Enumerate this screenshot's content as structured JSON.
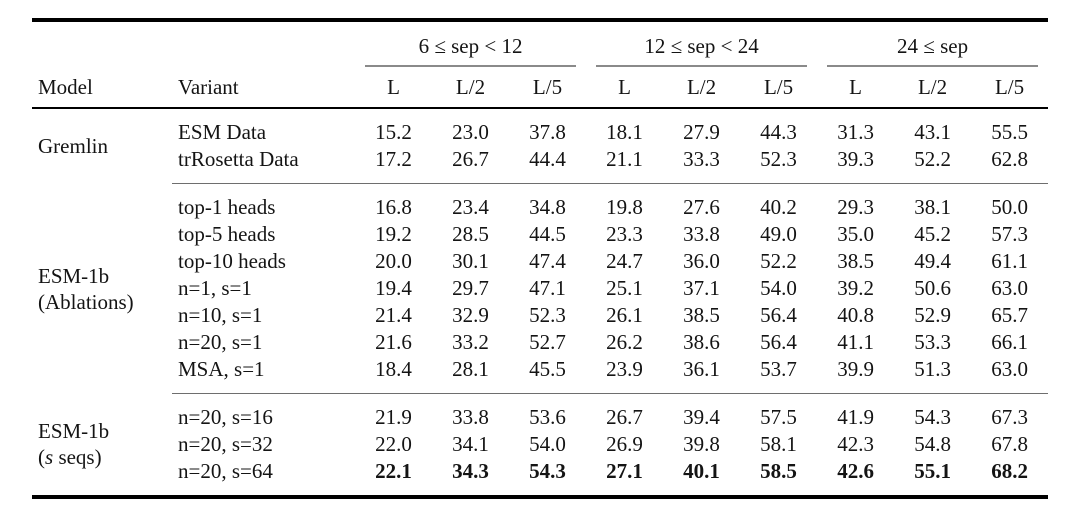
{
  "colors": {
    "heavy_rule": "#000000",
    "group_rule": "#8a8a8a",
    "section_rule": "#6e6e6e",
    "text": "#141414",
    "background": "#ffffff"
  },
  "table": {
    "col_groups": [
      {
        "label": "6 ≤ sep < 12"
      },
      {
        "label": "12 ≤ sep < 24"
      },
      {
        "label": "24 ≤ sep"
      }
    ],
    "header": {
      "model": "Model",
      "variant": "Variant",
      "subcols": [
        "L",
        "L/2",
        "L/5",
        "L",
        "L/2",
        "L/5",
        "L",
        "L/2",
        "L/5"
      ]
    },
    "sections": [
      {
        "model": "Gremlin",
        "rows": [
          {
            "variant": "ESM Data",
            "values": [
              "15.2",
              "23.0",
              "37.8",
              "18.1",
              "27.9",
              "44.3",
              "31.3",
              "43.1",
              "55.5"
            ]
          },
          {
            "variant": "trRosetta Data",
            "values": [
              "17.2",
              "26.7",
              "44.4",
              "21.1",
              "33.3",
              "52.3",
              "39.3",
              "52.2",
              "62.8"
            ]
          }
        ]
      },
      {
        "model": "ESM-1b",
        "model_line2": "(Ablations)",
        "rows": [
          {
            "variant": "top-1 heads",
            "values": [
              "16.8",
              "23.4",
              "34.8",
              "19.8",
              "27.6",
              "40.2",
              "29.3",
              "38.1",
              "50.0"
            ]
          },
          {
            "variant": "top-5 heads",
            "values": [
              "19.2",
              "28.5",
              "44.5",
              "23.3",
              "33.8",
              "49.0",
              "35.0",
              "45.2",
              "57.3"
            ]
          },
          {
            "variant": "top-10 heads",
            "values": [
              "20.0",
              "30.1",
              "47.4",
              "24.7",
              "36.0",
              "52.2",
              "38.5",
              "49.4",
              "61.1"
            ]
          },
          {
            "variant": "n=1, s=1",
            "values": [
              "19.4",
              "29.7",
              "47.1",
              "25.1",
              "37.1",
              "54.0",
              "39.2",
              "50.6",
              "63.0"
            ]
          },
          {
            "variant": "n=10, s=1",
            "values": [
              "21.4",
              "32.9",
              "52.3",
              "26.1",
              "38.5",
              "56.4",
              "40.8",
              "52.9",
              "65.7"
            ]
          },
          {
            "variant": "n=20, s=1",
            "values": [
              "21.6",
              "33.2",
              "52.7",
              "26.2",
              "38.6",
              "56.4",
              "41.1",
              "53.3",
              "66.1"
            ]
          },
          {
            "variant": "MSA, s=1",
            "values": [
              "18.4",
              "28.1",
              "45.5",
              "23.9",
              "36.1",
              "53.7",
              "39.9",
              "51.3",
              "63.0"
            ]
          }
        ]
      },
      {
        "model": "ESM-1b",
        "model_line2_open": "(",
        "model_line2_var": "s",
        "model_line2_rest": " seqs)",
        "rows": [
          {
            "variant": "n=20, s=16",
            "values": [
              "21.9",
              "33.8",
              "53.6",
              "26.7",
              "39.4",
              "57.5",
              "41.9",
              "54.3",
              "67.3"
            ]
          },
          {
            "variant": "n=20, s=32",
            "values": [
              "22.0",
              "34.1",
              "54.0",
              "26.9",
              "39.8",
              "58.1",
              "42.3",
              "54.8",
              "67.8"
            ]
          },
          {
            "variant": "n=20, s=64",
            "values": [
              "22.1",
              "34.3",
              "54.3",
              "27.1",
              "40.1",
              "58.5",
              "42.6",
              "55.1",
              "68.2"
            ]
          }
        ]
      }
    ]
  }
}
